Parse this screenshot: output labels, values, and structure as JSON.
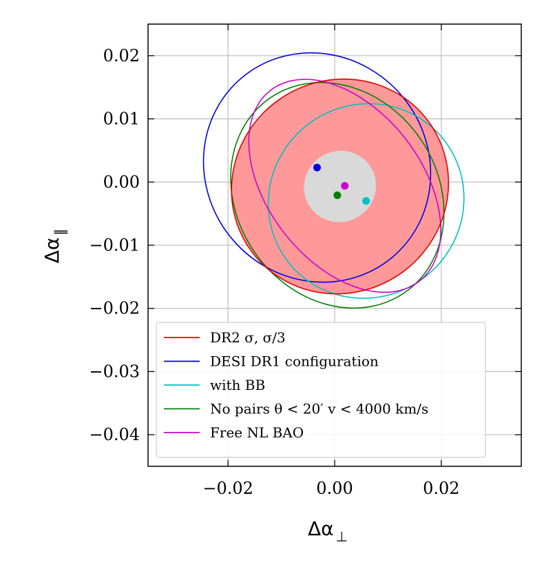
{
  "chart_data": {
    "type": "scatter",
    "xlabel": "Δα",
    "xlabel_sub": "⊥",
    "ylabel": "Δα",
    "ylabel_sub": "∥",
    "xlim": [
      -0.035,
      0.035
    ],
    "ylim": [
      -0.045,
      0.025
    ],
    "x_ticks": [
      -0.02,
      0.0,
      0.02
    ],
    "x_tick_labels": [
      "−0.02",
      "0.00",
      "0.02"
    ],
    "y_ticks": [
      0.02,
      0.01,
      0.0,
      -0.01,
      -0.02,
      -0.03,
      -0.04
    ],
    "y_tick_labels": [
      "0.02",
      "0.01",
      "0.00",
      "−0.01",
      "−0.02",
      "−0.03",
      "−0.04"
    ],
    "grid": true,
    "legend_position": "bottom-left",
    "filled_ellipses": [
      {
        "name": "DR2 σ",
        "center": [
          0.001,
          -0.0007
        ],
        "x_extent": [
          -0.0202,
          0.0205
        ],
        "y_extent": [
          -0.0174,
          0.0166
        ],
        "angle_deg": -36.0,
        "fill": "#ff9999",
        "stroke": "#e00000"
      },
      {
        "name": "DR2 σ/3",
        "center": [
          0.001,
          -0.0007
        ],
        "x_extent": [
          -0.0067,
          0.0068
        ],
        "y_extent": [
          -0.0058,
          0.0055
        ],
        "angle_deg": -36.0,
        "fill": "#d9d9d9",
        "stroke": "none"
      }
    ],
    "series": [
      {
        "name": "DR2 σ, σ/3",
        "color": "#e00000",
        "center": [
          0.001,
          -0.0007
        ],
        "x_extent": [
          -0.0202,
          0.0205
        ],
        "y_extent": [
          -0.0174,
          0.0166
        ],
        "angle_deg": -36.0,
        "show_center": false
      },
      {
        "name": "DESI DR1 configuration",
        "color": "#0000e0",
        "center": [
          -0.0033,
          0.0023
        ],
        "x_extent": [
          -0.0245,
          0.0181
        ],
        "y_extent": [
          -0.0158,
          0.0205
        ],
        "angle_deg": -40.0,
        "show_center": true
      },
      {
        "name": "with BB",
        "color": "#00bfbf",
        "center": [
          0.0059,
          -0.003
        ],
        "x_extent": [
          -0.0112,
          0.0255
        ],
        "y_extent": [
          -0.0185,
          0.0123
        ],
        "angle_deg": -39.0,
        "show_center": true
      },
      {
        "name": "No pairs θ < 20′ v < 4000 km/s",
        "color": "#007f00",
        "center": [
          0.0005,
          -0.0021
        ],
        "x_extent": [
          -0.0195,
          0.0205
        ],
        "y_extent": [
          -0.02,
          0.0157
        ],
        "angle_deg": -35.0,
        "show_center": true
      },
      {
        "name": "Free NL BAO",
        "color": "#cc00cc",
        "center": [
          0.0019,
          -0.0006
        ],
        "x_extent": [
          -0.0165,
          0.0195
        ],
        "y_extent": [
          -0.0175,
          0.0162
        ],
        "angle_deg": -38.0,
        "show_center": true
      }
    ],
    "legend": [
      {
        "label": "DR2 σ, σ/3",
        "color": "#e00000"
      },
      {
        "label": "DESI DR1 configuration",
        "color": "#0000e0"
      },
      {
        "label": "with BB",
        "color": "#00bfbf"
      },
      {
        "label": "No pairs θ < 20′ v < 4000 km/s",
        "color": "#007f00"
      },
      {
        "label": "Free NL BAO",
        "color": "#cc00cc"
      }
    ]
  }
}
